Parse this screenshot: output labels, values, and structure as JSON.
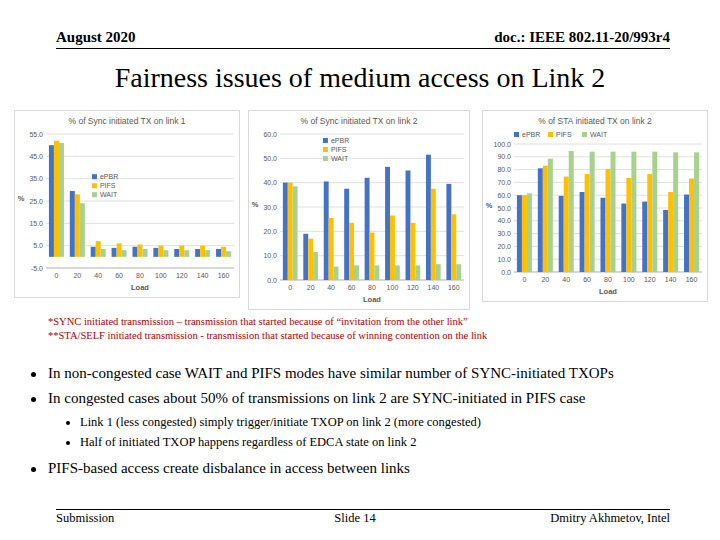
{
  "slide": {
    "header_left": "August 2020",
    "header_right": "doc.: IEEE 802.11-20/993r4",
    "title": "Fairness issues of medium access on Link 2",
    "footnotes": [
      "*SYNC initiated transmission – transmission that started because of “invitation from the other link”",
      "**STA/SELF initiated transmission - transmission that started because of winning contention on the link"
    ],
    "bullets": [
      {
        "text": "In non-congested case WAIT and PIFS modes have similar number of SYNC-initiated TXOPs"
      },
      {
        "text": "In congested cases about 50% of transmissions on link 2 are SYNC-initiated in PIFS case",
        "sub": [
          "Link 1 (less congested) simply trigger/initiate TXOP on link 2 (more congested)",
          "Half of initiated TXOP happens regardless of EDCA state on link 2"
        ]
      },
      {
        "text": "PIFS-based access create disbalance in access between links"
      }
    ],
    "footer": {
      "left": "Submission",
      "center": "Slide 14",
      "right": "Dmitry Akhmetov, Intel"
    }
  },
  "chart_data": [
    {
      "type": "bar",
      "title": "% of Sync initiated TX on link 1",
      "x_label": "Load",
      "y_label": "%",
      "categories": [
        "0",
        "20",
        "40",
        "60",
        "80",
        "100",
        "120",
        "140",
        "160"
      ],
      "series": [
        {
          "name": "ePBR",
          "color": "#4472c4",
          "values": [
            50,
            29.5,
            4.5,
            4,
            4.5,
            4,
            3.5,
            3.5,
            3.5
          ]
        },
        {
          "name": "PIFS",
          "color": "#ffc000",
          "values": [
            52,
            28,
            7,
            6,
            5.5,
            5,
            5,
            5,
            4.5
          ]
        },
        {
          "name": "WAIT",
          "color": "#a9d18e",
          "values": [
            51,
            24,
            3.5,
            3,
            3.5,
            3,
            3,
            3,
            2.5
          ]
        }
      ],
      "ylim": [
        -5,
        55
      ],
      "yticks": [
        {
          "value": -5,
          "label": "-5.0"
        },
        {
          "value": 5,
          "label": "5.0"
        },
        {
          "value": 15,
          "label": "15.0"
        },
        {
          "value": 25,
          "label": "25.0"
        },
        {
          "value": 35,
          "label": "35.0"
        },
        {
          "value": 45,
          "label": "45.0"
        },
        {
          "value": 55,
          "label": "55.0"
        }
      ],
      "grid": true,
      "legend": "center"
    },
    {
      "type": "bar",
      "title": "% of Sync initiated TX on link 2",
      "x_label": "Load",
      "y_label": "%",
      "categories": [
        "0",
        "20",
        "40",
        "60",
        "80",
        "100",
        "120",
        "140",
        "160"
      ],
      "series": [
        {
          "name": "ePBR",
          "color": "#4472c4",
          "values": [
            40,
            19,
            40.5,
            37.5,
            42,
            46.5,
            45,
            51.5,
            39.5
          ]
        },
        {
          "name": "PIFS",
          "color": "#ffc000",
          "values": [
            40,
            17,
            25.5,
            23.5,
            19.5,
            26.5,
            23.5,
            37.5,
            27
          ]
        },
        {
          "name": "WAIT",
          "color": "#a9d18e",
          "values": [
            38.5,
            11.5,
            5.5,
            6,
            6,
            6,
            6,
            6.5,
            6.5
          ]
        }
      ],
      "ylim": [
        0,
        60
      ],
      "yticks": [
        {
          "value": 0,
          "label": "0.0"
        },
        {
          "value": 10,
          "label": "10.0"
        },
        {
          "value": 20,
          "label": "20.0"
        },
        {
          "value": 30,
          "label": "30.0"
        },
        {
          "value": 40,
          "label": "40.0"
        },
        {
          "value": 50,
          "label": "50.0"
        },
        {
          "value": 60,
          "label": "60.0"
        }
      ],
      "grid": true,
      "legend": "top"
    },
    {
      "type": "bar",
      "title": "% of STA initiated TX on link 2",
      "x_label": "Load",
      "y_label": "%",
      "categories": [
        "0",
        "20",
        "40",
        "60",
        "80",
        "100",
        "120",
        "140",
        "160"
      ],
      "series": [
        {
          "name": "ePBR",
          "color": "#4472c4",
          "values": [
            60,
            81,
            59.5,
            62.5,
            58,
            53.5,
            55,
            48.5,
            60.5
          ]
        },
        {
          "name": "PIFS",
          "color": "#ffc000",
          "values": [
            60,
            83,
            74.5,
            76.5,
            80.5,
            73.5,
            76.5,
            62.5,
            73
          ]
        },
        {
          "name": "WAIT",
          "color": "#a9d18e",
          "values": [
            61.5,
            88.5,
            94.5,
            94,
            94,
            94,
            94,
            93.5,
            93.5
          ]
        }
      ],
      "ylim": [
        0,
        100
      ],
      "yticks": [
        {
          "value": 0,
          "label": "0.0"
        },
        {
          "value": 10,
          "label": "10.0"
        },
        {
          "value": 20,
          "label": "20.0"
        },
        {
          "value": 30,
          "label": "30.0"
        },
        {
          "value": 40,
          "label": "40.0"
        },
        {
          "value": 50,
          "label": "50.0"
        },
        {
          "value": 60,
          "label": "60.0"
        },
        {
          "value": 70,
          "label": "70.0"
        },
        {
          "value": 80,
          "label": "80.0"
        },
        {
          "value": 90,
          "label": "90.0"
        },
        {
          "value": 100,
          "label": "100.0"
        }
      ],
      "grid": true,
      "legend": "top-left"
    }
  ]
}
